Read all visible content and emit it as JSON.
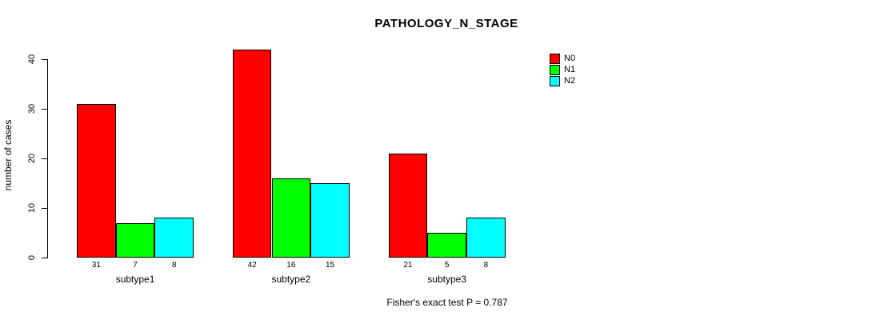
{
  "title": "PATHOLOGY_N_STAGE",
  "annotation": "Fisher's exact test P = 0.787",
  "colors": {
    "background": "#ffffff",
    "axis": "#000000",
    "text": "#000000",
    "bar_border": "#000000"
  },
  "chart_data": {
    "type": "bar",
    "title": "PATHOLOGY_N_STAGE",
    "categories": [
      "subtype1",
      "subtype2",
      "subtype3"
    ],
    "series": [
      {
        "name": "N0",
        "color": "#ff0000",
        "values": [
          31,
          42,
          21
        ]
      },
      {
        "name": "N1",
        "color": "#00ff00",
        "values": [
          7,
          16,
          5
        ]
      },
      {
        "name": "N2",
        "color": "#00ffff",
        "values": [
          8,
          15,
          8
        ]
      }
    ],
    "xlabel": "",
    "ylabel": "number of cases",
    "ylim": [
      0,
      40
    ],
    "yticks": [
      0,
      10,
      20,
      30,
      40
    ],
    "grid": false,
    "bar_value_labels": true,
    "legend_position": "top-right",
    "footnote": "Fisher's exact test P = 0.787"
  }
}
